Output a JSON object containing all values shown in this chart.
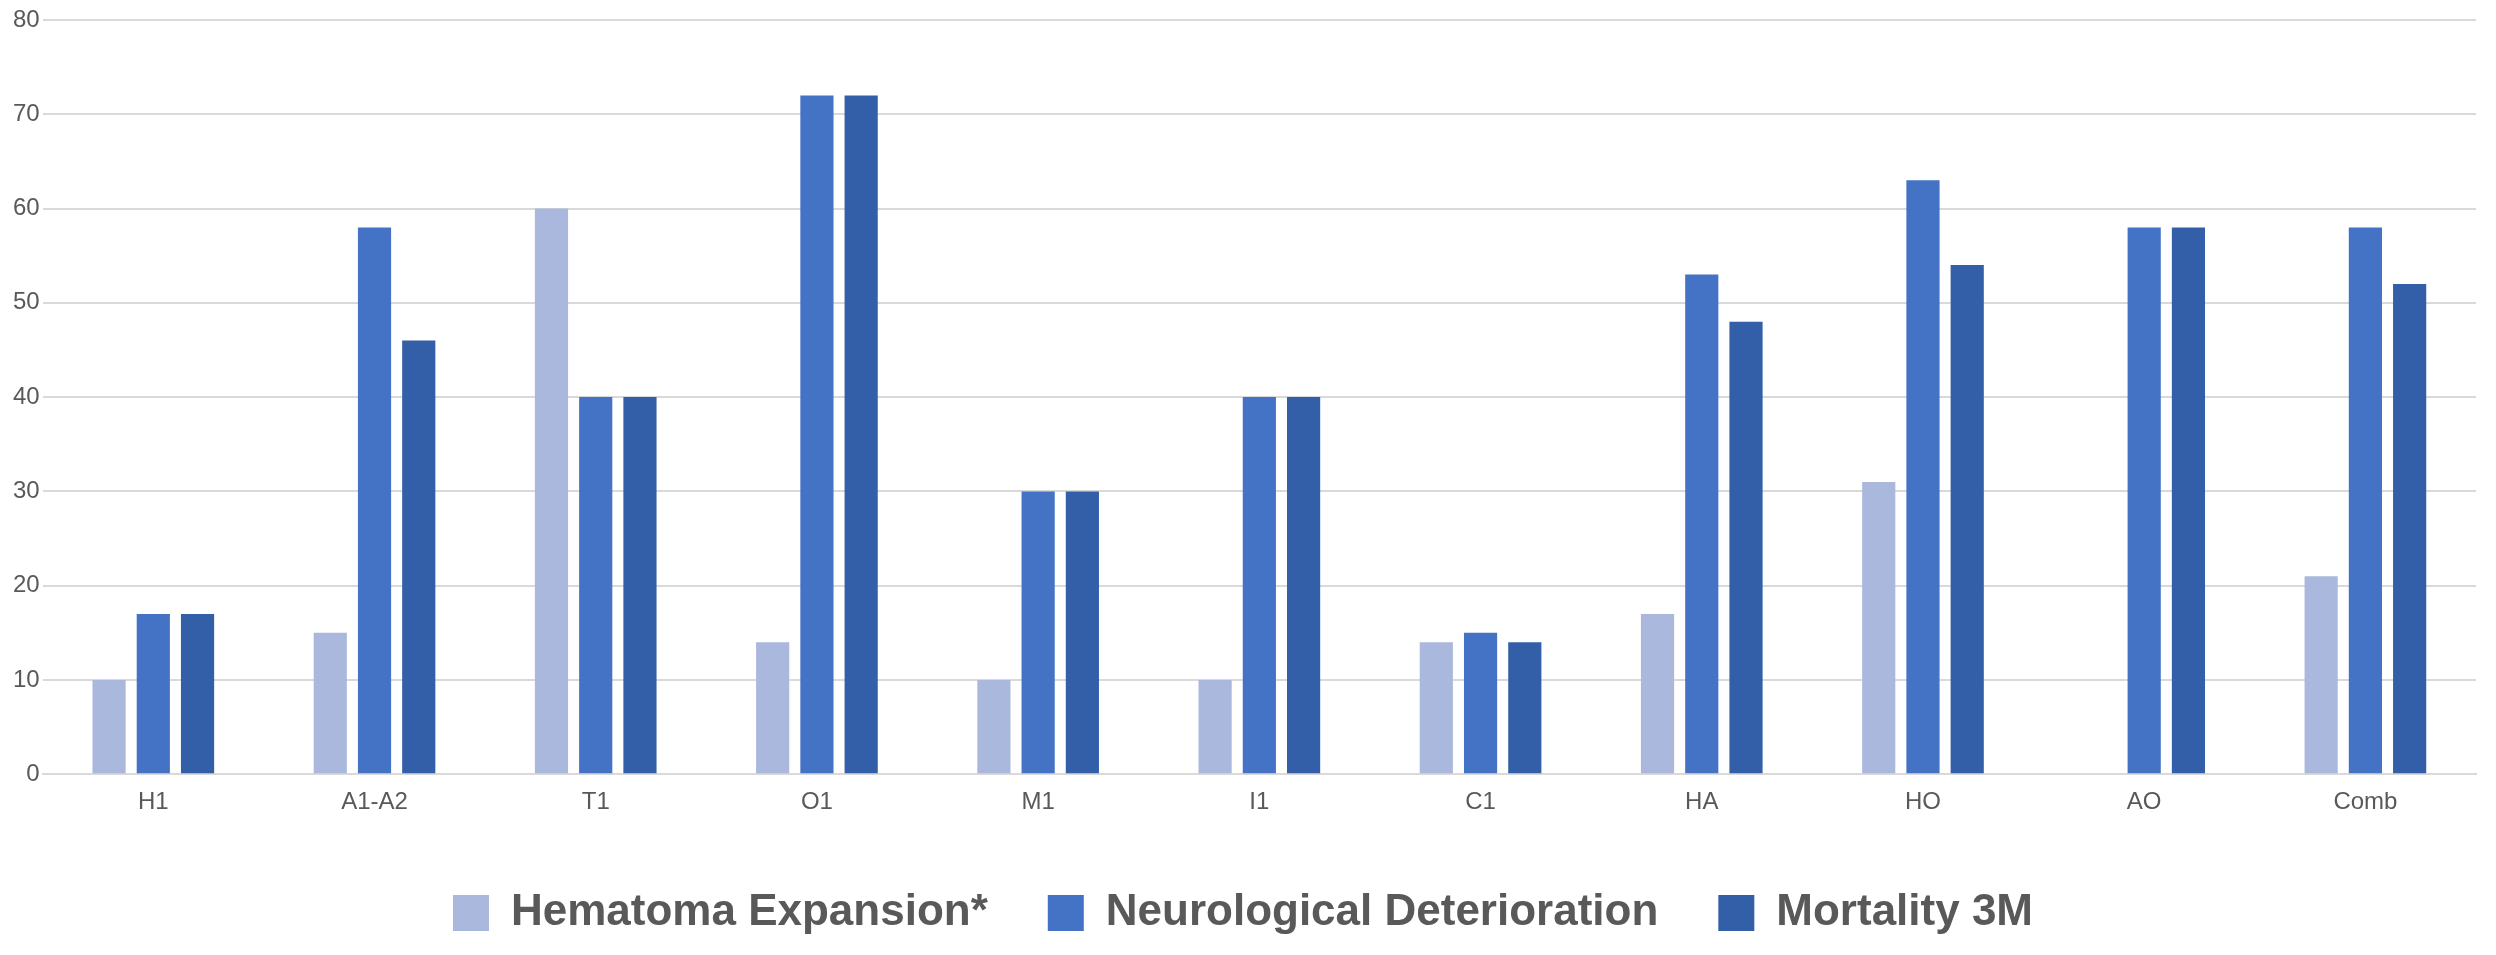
{
  "chart_data": {
    "type": "bar",
    "categories": [
      "H1",
      "A1-A2",
      "T1",
      "O1",
      "M1",
      "I1",
      "C1",
      "HA",
      "HO",
      "AO",
      "Comb"
    ],
    "series": [
      {
        "name": "Hematoma Expansion*",
        "color": "#a9b8dc",
        "values": [
          10,
          15,
          60,
          14,
          10,
          10,
          14,
          17,
          31,
          0,
          21
        ]
      },
      {
        "name": "Neurological Deterioration",
        "color": "#4472c4",
        "values": [
          17,
          58,
          40,
          72,
          30,
          40,
          15,
          53,
          63,
          58,
          58
        ]
      },
      {
        "name": "Mortality 3M",
        "color": "#335ea8",
        "values": [
          17,
          46,
          40,
          72,
          30,
          40,
          14,
          48,
          54,
          58,
          52
        ]
      }
    ],
    "ylim": [
      0,
      80
    ],
    "yticks": [
      0,
      10,
      20,
      30,
      40,
      50,
      60,
      70,
      80
    ],
    "grid": "y",
    "legend": "bottom"
  }
}
